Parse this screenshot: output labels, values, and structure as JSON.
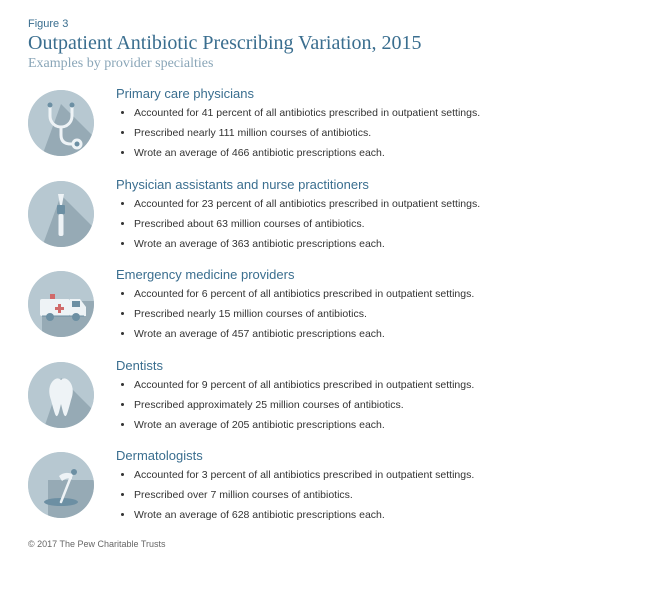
{
  "colors": {
    "accent": "#3a6e8f",
    "subtitle": "#8aa6b8",
    "icon_bg": "#b7c8d1",
    "icon_fg": "#eef3f6",
    "icon_mid": "#6c8fa3",
    "text": "#333333",
    "bg": "#ffffff"
  },
  "figure_label": "Figure 3",
  "title": "Outpatient Antibiotic Prescribing Variation, 2015",
  "subtitle": "Examples by provider specialties",
  "sections": [
    {
      "icon": "stethoscope",
      "heading": "Primary care physicians",
      "bullets": [
        "Accounted for 41 percent of all antibiotics prescribed in outpatient settings.",
        "Prescribed nearly 111 million courses of antibiotics.",
        "Wrote an average of 466 antibiotic prescriptions each."
      ]
    },
    {
      "icon": "otoscope",
      "heading": "Physician assistants and nurse practitioners",
      "bullets": [
        "Accounted for 23 percent of all antibiotics prescribed in outpatient settings.",
        "Prescribed about 63 million courses of antibiotics.",
        "Wrote an average of 363 antibiotic prescriptions each."
      ]
    },
    {
      "icon": "ambulance",
      "heading": "Emergency medicine providers",
      "bullets": [
        "Accounted for 6 percent of all antibiotics prescribed in outpatient settings.",
        "Prescribed nearly 15 million courses of antibiotics.",
        "Wrote an average of 457 antibiotic prescriptions each."
      ]
    },
    {
      "icon": "tooth",
      "heading": "Dentists",
      "bullets": [
        "Accounted for 9 percent of all antibiotics prescribed in outpatient settings.",
        "Prescribed approximately 25 million courses of antibiotics.",
        "Wrote an average of 205 antibiotic prescriptions each."
      ]
    },
    {
      "icon": "derm-lamp",
      "heading": "Dermatologists",
      "bullets": [
        "Accounted for 3 percent of all antibiotics prescribed in outpatient settings.",
        "Prescribed over 7 million courses of antibiotics.",
        "Wrote an average of 628 antibiotic prescriptions each."
      ]
    }
  ],
  "footer": "© 2017 The Pew Charitable Trusts"
}
